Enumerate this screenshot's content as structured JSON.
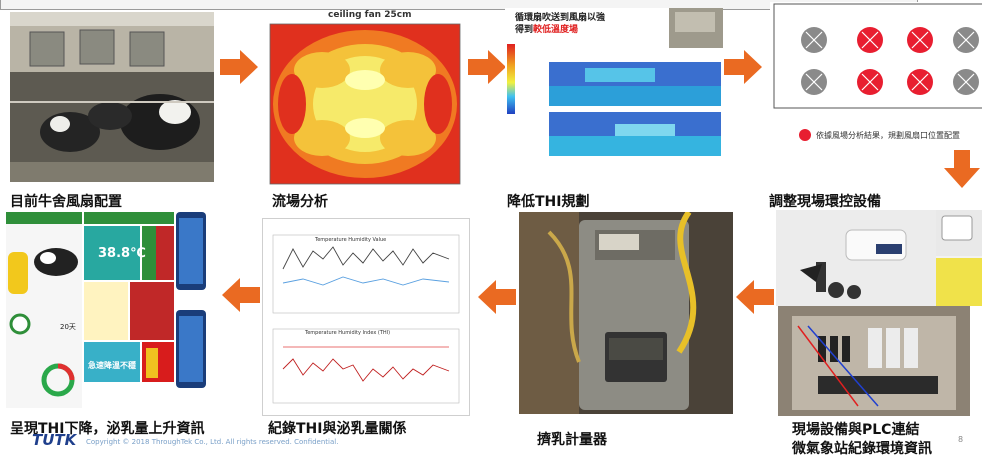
{
  "captions": {
    "c1": "目前牛舍風扇配置",
    "c2": "流場分析",
    "c3": "降低THI規劃",
    "c4": "調整現場環控設備",
    "c5": "現場設備與PLC連結",
    "c5b": "微氣象站紀錄環境資訊",
    "c6": "擠乳計量器",
    "c7": "紀錄THI與泌乳量關係",
    "c8": "呈現THI下降，泌乳量上升資訊"
  },
  "cfd": {
    "title": "ceiling fan 25cm"
  },
  "plan": {
    "line1": "循環扇吹送到風扇以強",
    "line2": "得到",
    "highlight": "較低溫度場"
  },
  "layout_legend": {
    "note": "依據風場分析結果，規劃風扇口位置配置"
  },
  "chart_shot": {
    "top_title": "Temperature Humidity Value",
    "bottom_title": "Temperature Humidity Index (THI)"
  },
  "dashboard": {
    "temp": "38.8℃",
    "days": "20天",
    "status": "急速降溫不穩"
  },
  "footer": {
    "logo": "TUTK",
    "copyright": "Copyright © 2018   ThroughTek Co., Ltd.   All rights reserved.   Confidential.",
    "page": "8"
  },
  "colors": {
    "arrow": "#ea6a22",
    "caption": "#111111",
    "logo": "#1f3f8c"
  }
}
